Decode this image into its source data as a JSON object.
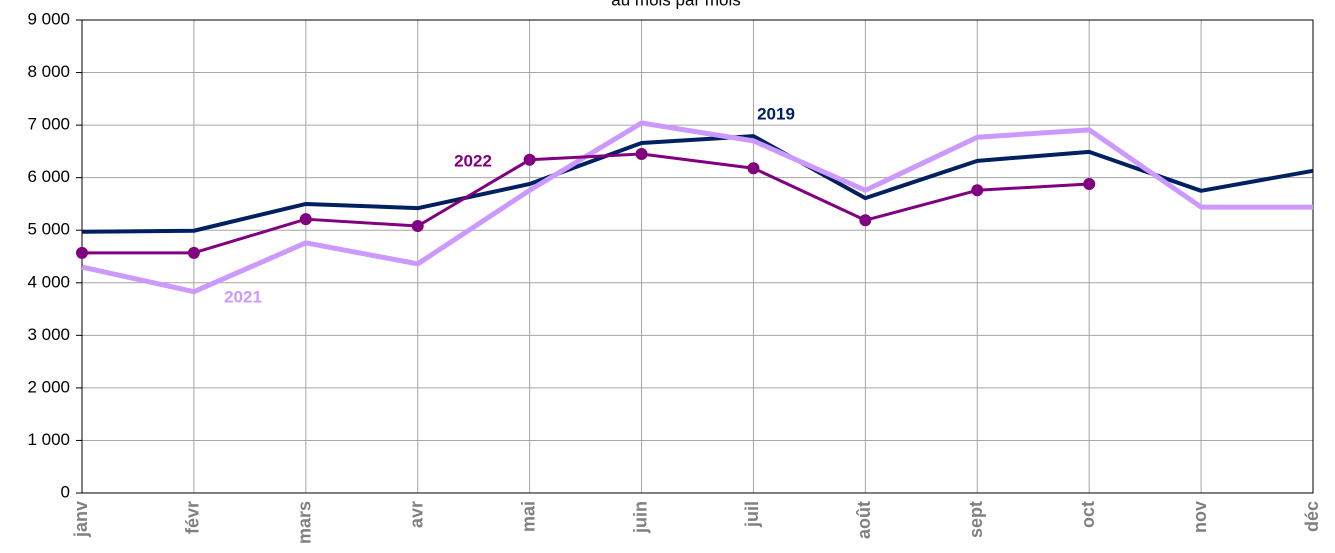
{
  "chart_data": {
    "type": "line",
    "title": "au mois par mois",
    "categories": [
      "janv",
      "févr",
      "mars",
      "avr",
      "mai",
      "juin",
      "juil",
      "août",
      "sept",
      "oct",
      "nov",
      "déc"
    ],
    "series": [
      {
        "name": "2019",
        "color": "#002060",
        "values": [
          4970,
          4990,
          5500,
          5420,
          5880,
          6660,
          6790,
          5610,
          6320,
          6490,
          5750,
          6130
        ]
      },
      {
        "name": "2021",
        "color": "#cc99ff",
        "values": [
          4300,
          3830,
          4760,
          4360,
          5760,
          7040,
          6700,
          5760,
          6770,
          6910,
          5440,
          5440
        ]
      },
      {
        "name": "2022",
        "color": "#800080",
        "values": [
          4570,
          4570,
          5210,
          5080,
          6340,
          6450,
          6180,
          5190,
          5760,
          5880,
          null,
          null
        ]
      }
    ],
    "ylim": [
      0,
      9000
    ],
    "yticks": [
      0,
      {
        "value": 1000,
        "label": "1 000"
      },
      {
        "value": 2000,
        "label": "2 000"
      },
      {
        "value": 3000,
        "label": "3 000"
      },
      {
        "value": 4000,
        "label": "4 000"
      },
      {
        "value": 5000,
        "label": "5 000"
      },
      {
        "value": 6000,
        "label": "6 000"
      },
      {
        "value": 7000,
        "label": "7 000"
      },
      {
        "value": 8000,
        "label": "8 000"
      },
      {
        "value": 9000,
        "label": "9 000"
      }
    ],
    "grid": true
  }
}
